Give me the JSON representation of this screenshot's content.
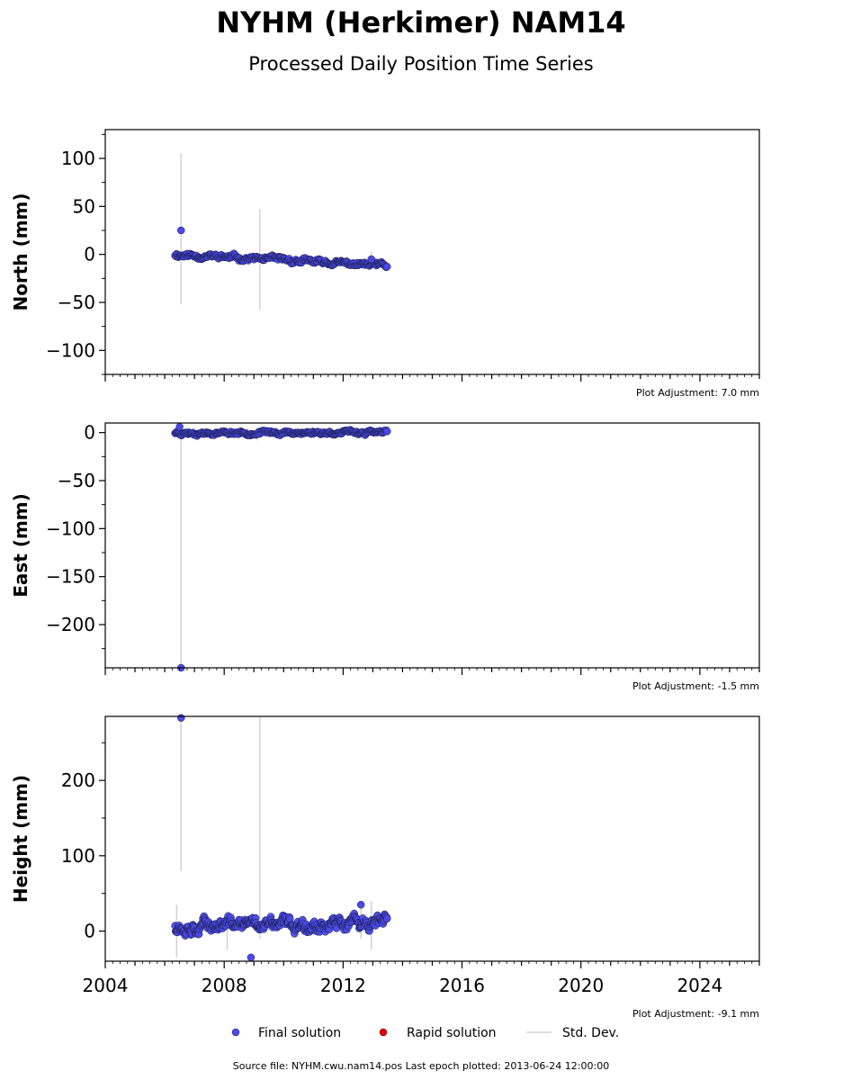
{
  "chart_data": {
    "type": "scatter",
    "title": "NYHM (Herkimer) NAM14",
    "subtitle": "Processed Daily Position Time Series",
    "x_axis": {
      "range": [
        2004,
        2026
      ],
      "tick_values": [
        2004,
        2008,
        2012,
        2016,
        2020,
        2024
      ],
      "tick_labels": [
        "2004",
        "2008",
        "2012",
        "2016",
        "2020",
        "2024"
      ]
    },
    "panels": [
      {
        "ylabel": "North (mm)",
        "ylim": [
          -125,
          130
        ],
        "tick_values": [
          100,
          50,
          0,
          -50,
          -100
        ],
        "tick_labels": [
          "100",
          "50",
          "0",
          "−50",
          "−100"
        ],
        "adjustment": "Plot Adjustment: 7.0 mm",
        "series_final": {
          "start": 2006.35,
          "end": 2013.48,
          "trend": [
            0,
            -12
          ],
          "noise": 2.5,
          "points": 300,
          "seed": 11,
          "outliers": [
            [
              2006.55,
              25
            ],
            [
              2012.95,
              -5
            ]
          ]
        },
        "std_dev_bars": [
          [
            2006.55,
            -52,
            105
          ],
          [
            2009.2,
            -58,
            47
          ],
          [
            2012.95,
            -12,
            3
          ]
        ]
      },
      {
        "ylabel": "East (mm)",
        "ylim": [
          -245,
          10
        ],
        "tick_values": [
          0,
          -50,
          -100,
          -150,
          -200
        ],
        "tick_labels": [
          "0",
          "−50",
          "−100",
          "−150",
          "−200"
        ],
        "adjustment": "Plot Adjustment: -1.5 mm",
        "series_final": {
          "start": 2006.35,
          "end": 2013.48,
          "trend": [
            0,
            0
          ],
          "noise": 1.8,
          "points": 300,
          "seed": 23,
          "outliers": [
            [
              2006.55,
              -245
            ],
            [
              2006.5,
              6
            ]
          ]
        },
        "std_dev_bars": [
          [
            2006.55,
            -245,
            10
          ],
          [
            2009.1,
            -8,
            4
          ]
        ]
      },
      {
        "ylabel": "Height (mm)",
        "ylim": [
          -40,
          285
        ],
        "tick_values": [
          200,
          100,
          0
        ],
        "tick_labels": [
          "200",
          "100",
          "0"
        ],
        "adjustment": "Plot Adjustment: -9.1 mm",
        "series_final": {
          "start": 2006.35,
          "end": 2013.48,
          "trend": [
            8,
            10
          ],
          "noise": 8,
          "points": 420,
          "seed": 37,
          "outliers": [
            [
              2006.55,
              283
            ],
            [
              2008.9,
              -35
            ],
            [
              2012.6,
              35
            ]
          ]
        },
        "std_dev_bars": [
          [
            2006.55,
            80,
            285
          ],
          [
            2009.2,
            -10,
            285
          ],
          [
            2006.4,
            -35,
            35
          ],
          [
            2008.1,
            -25,
            25
          ],
          [
            2012.95,
            -25,
            40
          ],
          [
            2012.6,
            -10,
            40
          ]
        ]
      }
    ],
    "legend": {
      "placement": "bottom-center",
      "final_label": "Final solution",
      "rapid_label": "Rapid solution",
      "stddev_label": "Std. Dev."
    },
    "colors": {
      "final": "#4a4ae8",
      "final_edge": "#1a1a40",
      "rapid": "#e00000",
      "stddev": "#d3d3d3"
    }
  },
  "footer": "Source file: NYHM.cwu.nam14.pos  Last epoch plotted: 2013-06-24 12:00:00"
}
